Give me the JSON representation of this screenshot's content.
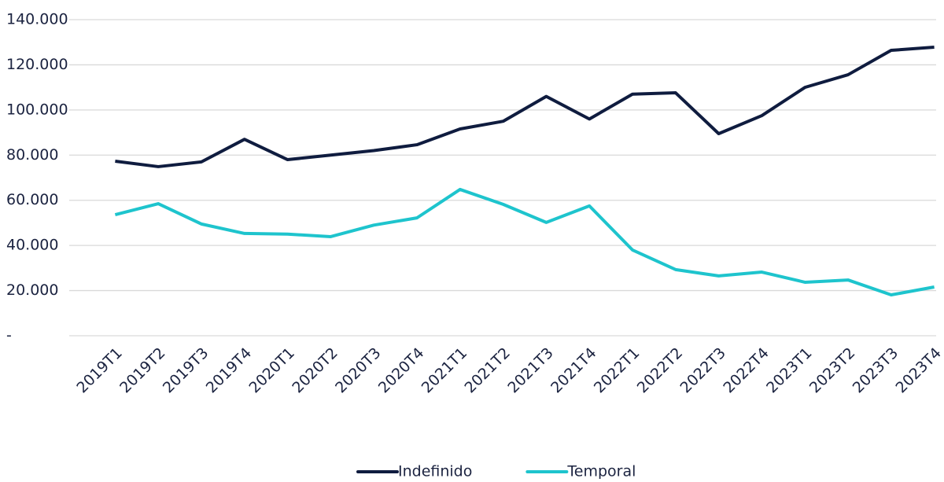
{
  "chart_data": {
    "type": "line",
    "categories": [
      "2019T1",
      "2019T2",
      "2019T3",
      "2019T4",
      "2020T1",
      "2020T2",
      "2020T3",
      "2020T4",
      "2021T1",
      "2021T2",
      "2021T3",
      "2021T4",
      "2022T1",
      "2022T2",
      "2022T3",
      "2022T4",
      "2023T1",
      "2023T2",
      "2023T3",
      "2023T4"
    ],
    "series": [
      {
        "name": "Indefinido",
        "color": "#0f1c3f",
        "values": [
          77300,
          74900,
          77000,
          87000,
          78000,
          80000,
          82000,
          84600,
          91600,
          95000,
          106000,
          96000,
          107000,
          107600,
          89500,
          97500,
          110000,
          115600,
          126400,
          127800
        ]
      },
      {
        "name": "Temporal",
        "color": "#1ec4cd",
        "values": [
          53600,
          58500,
          49500,
          45300,
          45000,
          43900,
          49000,
          52200,
          64800,
          58200,
          50200,
          57500,
          38000,
          29300,
          26500,
          28200,
          23700,
          24700,
          18100,
          21600
        ]
      }
    ],
    "ylim": [
      0,
      140000
    ],
    "yticks": [
      {
        "value": 0,
        "label": "-"
      },
      {
        "value": 20000,
        "label": "20.000"
      },
      {
        "value": 40000,
        "label": "40.000"
      },
      {
        "value": 60000,
        "label": "60.000"
      },
      {
        "value": 80000,
        "label": "80.000"
      },
      {
        "value": 100000,
        "label": "100.000"
      },
      {
        "value": 120000,
        "label": "120.000"
      },
      {
        "value": 140000,
        "label": "140.000"
      }
    ],
    "grid": true,
    "legend": "bottom"
  }
}
